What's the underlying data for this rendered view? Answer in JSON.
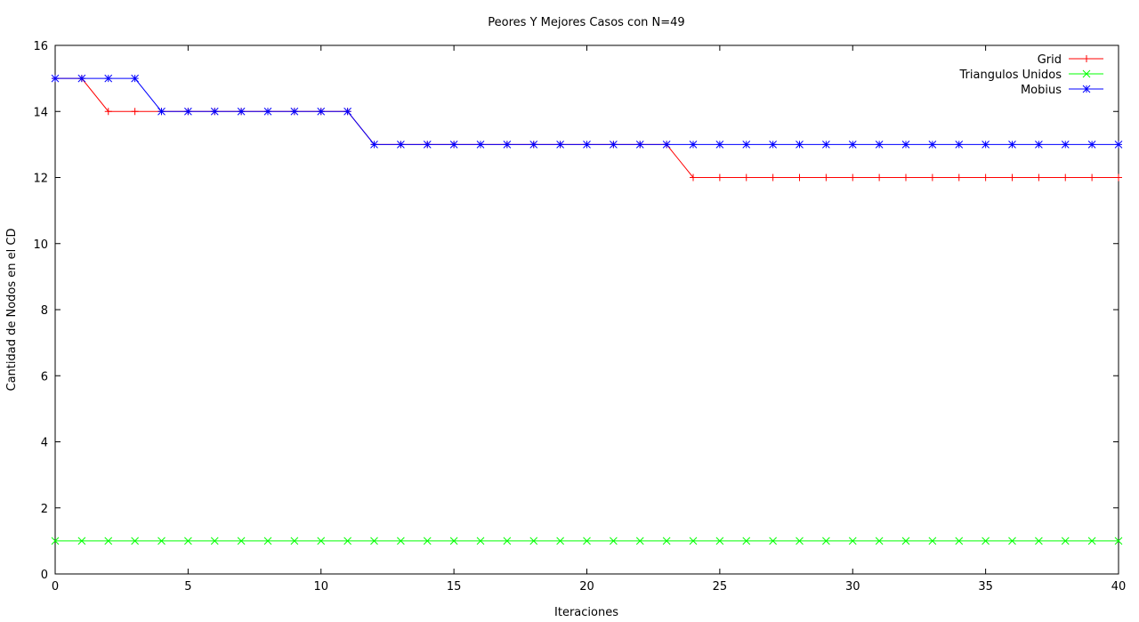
{
  "chart_data": {
    "type": "line",
    "title": "Peores Y Mejores Casos con N=49",
    "xlabel": "Iteraciones",
    "ylabel": "Cantidad de Nodos en el CD",
    "xlim": [
      0,
      40
    ],
    "ylim": [
      0,
      16
    ],
    "xticks": [
      0,
      5,
      10,
      15,
      20,
      25,
      30,
      35,
      40
    ],
    "yticks": [
      0,
      2,
      4,
      6,
      8,
      10,
      12,
      14,
      16
    ],
    "grid": false,
    "legend_position": "top-right",
    "x": [
      0,
      1,
      2,
      3,
      4,
      5,
      6,
      7,
      8,
      9,
      10,
      11,
      12,
      13,
      14,
      15,
      16,
      17,
      18,
      19,
      20,
      21,
      22,
      23,
      24,
      25,
      26,
      27,
      28,
      29,
      30,
      31,
      32,
      33,
      34,
      35,
      36,
      37,
      38,
      39,
      40
    ],
    "series": [
      {
        "name": "Grid",
        "color": "#ff0000",
        "marker": "plus",
        "values": [
          15,
          15,
          14,
          14,
          14,
          14,
          14,
          14,
          14,
          14,
          14,
          14,
          13,
          13,
          13,
          13,
          13,
          13,
          13,
          13,
          13,
          13,
          13,
          13,
          12,
          12,
          12,
          12,
          12,
          12,
          12,
          12,
          12,
          12,
          12,
          12,
          12,
          12,
          12,
          12,
          12
        ]
      },
      {
        "name": "Triangulos Unidos",
        "color": "#00ff00",
        "marker": "cross",
        "values": [
          1,
          1,
          1,
          1,
          1,
          1,
          1,
          1,
          1,
          1,
          1,
          1,
          1,
          1,
          1,
          1,
          1,
          1,
          1,
          1,
          1,
          1,
          1,
          1,
          1,
          1,
          1,
          1,
          1,
          1,
          1,
          1,
          1,
          1,
          1,
          1,
          1,
          1,
          1,
          1,
          1
        ]
      },
      {
        "name": "Mobius",
        "color": "#0000ff",
        "marker": "star",
        "values": [
          15,
          15,
          15,
          15,
          14,
          14,
          14,
          14,
          14,
          14,
          14,
          14,
          13,
          13,
          13,
          13,
          13,
          13,
          13,
          13,
          13,
          13,
          13,
          13,
          13,
          13,
          13,
          13,
          13,
          13,
          13,
          13,
          13,
          13,
          13,
          13,
          13,
          13,
          13,
          13,
          13
        ]
      }
    ]
  }
}
